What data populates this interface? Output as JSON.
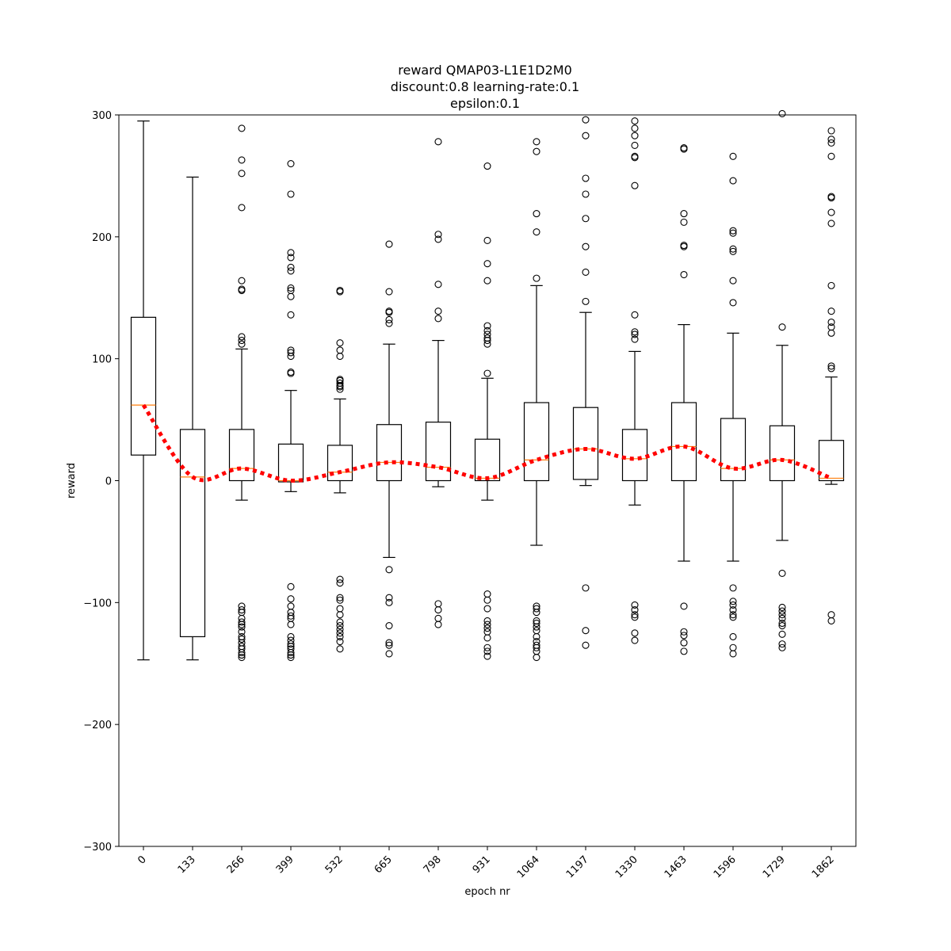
{
  "chart_data": {
    "type": "box",
    "title_lines": [
      "reward QMAP03-L1E1D2M0",
      "discount:0.8 learning-rate:0.1",
      "epsilon:0.1"
    ],
    "xlabel": "epoch nr",
    "ylabel": "reward",
    "ylim": [
      -300,
      300
    ],
    "yticks": [
      -300,
      -200,
      -100,
      0,
      100,
      200,
      300
    ],
    "ytick_labels": [
      "−300",
      "−200",
      "−100",
      "0",
      "100",
      "200",
      "300"
    ],
    "categories": [
      "0",
      "133",
      "266",
      "399",
      "532",
      "665",
      "798",
      "931",
      "1064",
      "1197",
      "1330",
      "1463",
      "1596",
      "1729",
      "1862"
    ],
    "boxes": [
      {
        "whislo": -147,
        "q1": 21,
        "median": 62,
        "q3": 134,
        "whishi": 295,
        "fliers": []
      },
      {
        "whislo": -147,
        "q1": -128,
        "median": 3,
        "q3": 42,
        "whishi": 249,
        "fliers": []
      },
      {
        "whislo": -16,
        "q1": 0,
        "median": 10,
        "q3": 42,
        "whishi": 108,
        "fliers": [
          289,
          263,
          252,
          224,
          164,
          157,
          156,
          118,
          115,
          112,
          -103,
          -106,
          -108,
          -113,
          -116,
          -118,
          -120,
          -124,
          -128,
          -130,
          -133,
          -136,
          -138,
          -141,
          -143,
          -145
        ]
      },
      {
        "whislo": -9,
        "q1": -1,
        "median": 0,
        "q3": 30,
        "whishi": 74,
        "fliers": [
          260,
          235,
          187,
          183,
          175,
          172,
          158,
          156,
          151,
          136,
          107,
          105,
          102,
          89,
          88,
          -87,
          -97,
          -103,
          -108,
          -111,
          -113,
          -118,
          -128,
          -131,
          -134,
          -136,
          -138,
          -141,
          -143,
          -145
        ]
      },
      {
        "whislo": -10,
        "q1": 0,
        "median": 7,
        "q3": 29,
        "whishi": 67,
        "fliers": [
          156,
          155,
          113,
          107,
          102,
          83,
          82,
          80,
          78,
          77,
          75,
          -81,
          -84,
          -96,
          -98,
          -105,
          -110,
          -116,
          -119,
          -122,
          -125,
          -128,
          -132,
          -138
        ]
      },
      {
        "whislo": -63,
        "q1": 0,
        "median": 15,
        "q3": 46,
        "whishi": 112,
        "fliers": [
          194,
          155,
          139,
          138,
          132,
          129,
          -73,
          -96,
          -100,
          -119,
          -133,
          -135,
          -142
        ]
      },
      {
        "whislo": -5,
        "q1": 0,
        "median": 11,
        "q3": 48,
        "whishi": 115,
        "fliers": [
          278,
          202,
          198,
          161,
          139,
          133,
          -101,
          -106,
          -113,
          -118
        ]
      },
      {
        "whislo": -16,
        "q1": 0,
        "median": 2,
        "q3": 34,
        "whishi": 84,
        "fliers": [
          258,
          197,
          178,
          164,
          127,
          123,
          120,
          117,
          115,
          112,
          88,
          -93,
          -98,
          -105,
          -115,
          -118,
          -121,
          -124,
          -129,
          -137,
          -140,
          -144
        ]
      },
      {
        "whislo": -53,
        "q1": 0,
        "median": 17,
        "q3": 64,
        "whishi": 160,
        "fliers": [
          278,
          270,
          219,
          204,
          166,
          -103,
          -105,
          -108,
          -115,
          -117,
          -120,
          -123,
          -128,
          -132,
          -135,
          -137,
          -140,
          -145
        ]
      },
      {
        "whislo": -4,
        "q1": 1,
        "median": 26,
        "q3": 60,
        "whishi": 138,
        "fliers": [
          296,
          283,
          248,
          235,
          215,
          192,
          171,
          147,
          -88,
          -123,
          -135
        ]
      },
      {
        "whislo": -20,
        "q1": 0,
        "median": 18,
        "q3": 42,
        "whishi": 106,
        "fliers": [
          295,
          289,
          283,
          275,
          266,
          265,
          242,
          136,
          122,
          120,
          116,
          -102,
          -106,
          -110,
          -112,
          -125,
          -131
        ]
      },
      {
        "whislo": -66,
        "q1": 0,
        "median": 28,
        "q3": 64,
        "whishi": 128,
        "fliers": [
          273,
          272,
          219,
          212,
          193,
          192,
          169,
          -103,
          -124,
          -127,
          -133,
          -140
        ]
      },
      {
        "whislo": -66,
        "q1": 0,
        "median": 10,
        "q3": 51,
        "whishi": 121,
        "fliers": [
          266,
          246,
          205,
          203,
          190,
          188,
          164,
          146,
          -88,
          -99,
          -102,
          -106,
          -110,
          -112,
          -128,
          -137,
          -142
        ]
      },
      {
        "whislo": -49,
        "q1": 0,
        "median": 17,
        "q3": 45,
        "whishi": 111,
        "fliers": [
          301,
          126,
          -76,
          -104,
          -107,
          -110,
          -113,
          -117,
          -119,
          -126,
          -134,
          -137
        ]
      },
      {
        "whislo": -3,
        "q1": 0,
        "median": 2,
        "q3": 33,
        "whishi": 85,
        "fliers": [
          287,
          280,
          277,
          266,
          233,
          232,
          220,
          211,
          160,
          139,
          130,
          126,
          121,
          94,
          92,
          -110,
          -115
        ]
      }
    ],
    "trend_line": {
      "style": "dotted",
      "color": "#ff0000",
      "values": [
        62,
        3,
        10,
        0,
        7,
        15,
        11,
        2,
        17,
        26,
        18,
        28,
        10,
        17,
        2
      ]
    },
    "colors": {
      "box": "#000000",
      "median": "#ff7f0e",
      "trend": "#ff0000"
    },
    "grid": false
  }
}
